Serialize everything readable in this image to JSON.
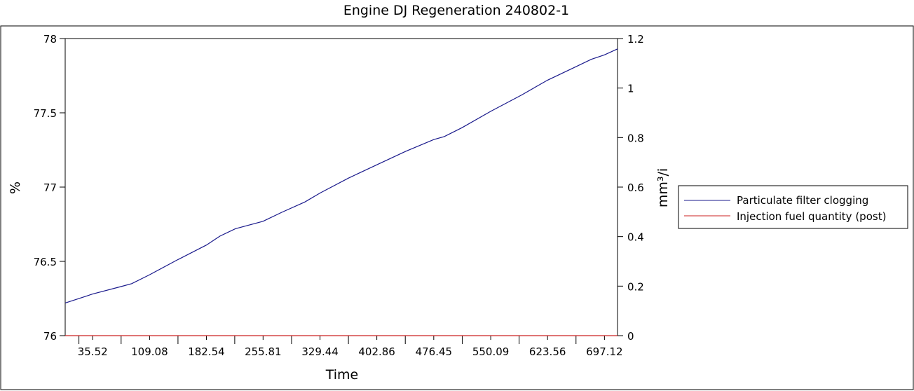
{
  "chart_data": {
    "type": "line",
    "title": "Engine DJ   Regeneration  240802-1",
    "xlabel": "Time",
    "ylabel_left": "%",
    "ylabel_right": "mm³/i",
    "x_ticks": [
      "35.52",
      "109.08",
      "182.54",
      "255.81",
      "329.44",
      "402.86",
      "476.45",
      "550.09",
      "623.56",
      "697.12"
    ],
    "x_tick_values": [
      35.52,
      109.08,
      182.54,
      255.81,
      329.44,
      402.86,
      476.45,
      550.09,
      623.56,
      697.12
    ],
    "xlim": [
      0,
      714
    ],
    "ylim_left": [
      76,
      78
    ],
    "ylim_right": [
      0,
      1.2
    ],
    "y_ticks_left": [
      "76",
      "76.5",
      "77",
      "77.5",
      "78"
    ],
    "y_tick_values_left": [
      76,
      76.5,
      77,
      77.5,
      78
    ],
    "y_ticks_right": [
      "0",
      "0.2",
      "0.4",
      "0.6",
      "0.8",
      "1",
      "1.2"
    ],
    "y_tick_values_right": [
      0,
      0.2,
      0.4,
      0.6,
      0.8,
      1,
      1.2
    ],
    "grid": false,
    "legend_position": "right",
    "series": [
      {
        "name": "Particulate filter clogging",
        "axis": "left",
        "color": "#1a1a8c",
        "x": [
          0,
          35.52,
          72,
          86,
          109.08,
          145,
          182.54,
          200,
          220,
          255.81,
          280,
          310,
          329.44,
          366,
          402.86,
          440,
          476.45,
          490,
          513,
          550.09,
          590,
          623.56,
          660,
          680,
          697.12,
          714
        ],
        "y": [
          76.22,
          76.28,
          76.33,
          76.35,
          76.41,
          76.51,
          76.61,
          76.67,
          76.72,
          76.77,
          76.83,
          76.9,
          76.96,
          77.06,
          77.15,
          77.24,
          77.32,
          77.34,
          77.4,
          77.51,
          77.62,
          77.72,
          77.81,
          77.86,
          77.89,
          77.93
        ]
      },
      {
        "name": "Injection fuel quantity (post)",
        "axis": "right",
        "color": "#cc2222",
        "x": [
          0,
          714
        ],
        "y": [
          0,
          0
        ]
      }
    ]
  }
}
